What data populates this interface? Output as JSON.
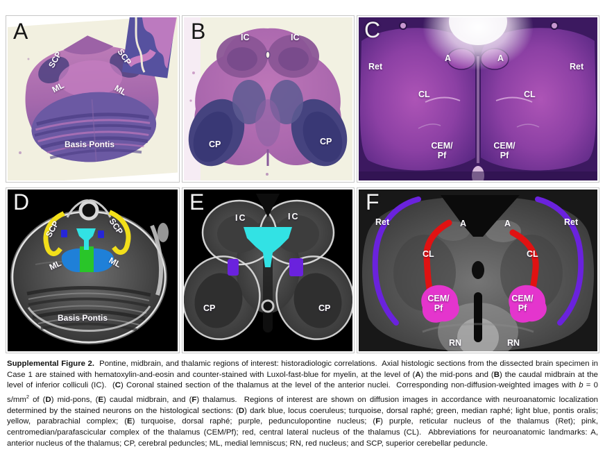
{
  "roi_colors": {
    "dark_blue": "#2626d8",
    "turquoise": "#32e2e4",
    "green": "#29c529",
    "light_blue": "#1f80d8",
    "yellow": "#f2df1a",
    "purple": "#6a22dd",
    "red": "#e01212",
    "pink": "#e435cd"
  },
  "panelA": {
    "letter": "A",
    "scp_left": "SCP",
    "scp_right": "SCP",
    "ml_left": "ML",
    "ml_right": "ML",
    "basis_pontis": "Basis Pontis"
  },
  "panelB": {
    "letter": "B",
    "ic_left": "IC",
    "ic_right": "IC",
    "cp_left": "CP",
    "cp_right": "CP"
  },
  "panelC": {
    "letter": "C",
    "ret_left": "Ret",
    "ret_right": "Ret",
    "a_left": "A",
    "a_right": "A",
    "cl_left": "CL",
    "cl_right": "CL",
    "cem_pf_left_line1": "CEM/",
    "cem_pf_left_line2": "Pf",
    "cem_pf_right_line1": "CEM/",
    "cem_pf_right_line2": "Pf"
  },
  "panelD": {
    "letter": "D",
    "scp_left": "SCP",
    "scp_right": "SCP",
    "ml_left": "ML",
    "ml_right": "ML",
    "basis_pontis": "Basis Pontis"
  },
  "panelE": {
    "letter": "E",
    "ic_left": "IC",
    "ic_right": "IC",
    "cp_left": "CP",
    "cp_right": "CP"
  },
  "panelF": {
    "letter": "F",
    "ret_left": "Ret",
    "ret_right": "Ret",
    "a_left": "A",
    "a_right": "A",
    "cl_left": "CL",
    "cl_right": "CL",
    "cem_pf_left_line1": "CEM/",
    "cem_pf_left_line2": "Pf",
    "cem_pf_right_line1": "CEM/",
    "cem_pf_right_line2": "Pf",
    "rn_left": "RN",
    "rn_right": "RN"
  },
  "caption": {
    "segments": [
      {
        "s": "b",
        "t": "Supplemental Figure 2."
      },
      {
        "s": "",
        "t": "  Pontine, midbrain, and thalamic regions of interest: historadiologic correlations.  Axial histologic sections from the dissected brain specimen in Case 1 are stained with hematoxylin-and-eosin and counter-stained with Luxol-fast-blue for myelin, at the level of ("
      },
      {
        "s": "b",
        "t": "A"
      },
      {
        "s": "",
        "t": ") the mid-pons and ("
      },
      {
        "s": "b",
        "t": "B"
      },
      {
        "s": "",
        "t": ") the caudal midbrain at the level of inferior colliculi (IC).  ("
      },
      {
        "s": "b",
        "t": "C"
      },
      {
        "s": "",
        "t": ") Coronal stained section of the thalamus at the level of the anterior nuclei.  Corresponding non-diffusion-weighted images with "
      },
      {
        "s": "i",
        "t": "b"
      },
      {
        "s": "",
        "t": " = 0 s/mm"
      },
      {
        "s": "sup",
        "t": "2"
      },
      {
        "s": "",
        "t": " of ("
      },
      {
        "s": "b",
        "t": "D"
      },
      {
        "s": "",
        "t": ") mid-pons, ("
      },
      {
        "s": "b",
        "t": "E"
      },
      {
        "s": "",
        "t": ") caudal midbrain, and ("
      },
      {
        "s": "b",
        "t": "F"
      },
      {
        "s": "",
        "t": ") thalamus.  Regions of interest are shown on diffusion images in accordance with neuroanatomic localization determined by the stained neurons on the histological sections: ("
      },
      {
        "s": "b",
        "t": "D"
      },
      {
        "s": "",
        "t": ") dark blue, locus coeruleus; turquoise, dorsal raphé; green, median raphé; light blue, pontis oralis; yellow, parabrachial complex; ("
      },
      {
        "s": "b",
        "t": "E"
      },
      {
        "s": "",
        "t": ") turquoise, dorsal raphé; purple, pedunculopontine nucleus; ("
      },
      {
        "s": "b",
        "t": "F"
      },
      {
        "s": "",
        "t": ") purple, reticular nucleus of the thalamus (Ret); pink, centromedian/parafascicular complex of the thalamus (CEM/Pf); red, central lateral nucleus of the thalamus (CL).  Abbreviations for neuroanatomic landmarks: A, anterior nucleus of the thalamus; CP, cerebral peduncles; ML, medial lemniscus; RN, red nucleus; and SCP, superior cerebellar peduncle."
      }
    ]
  }
}
